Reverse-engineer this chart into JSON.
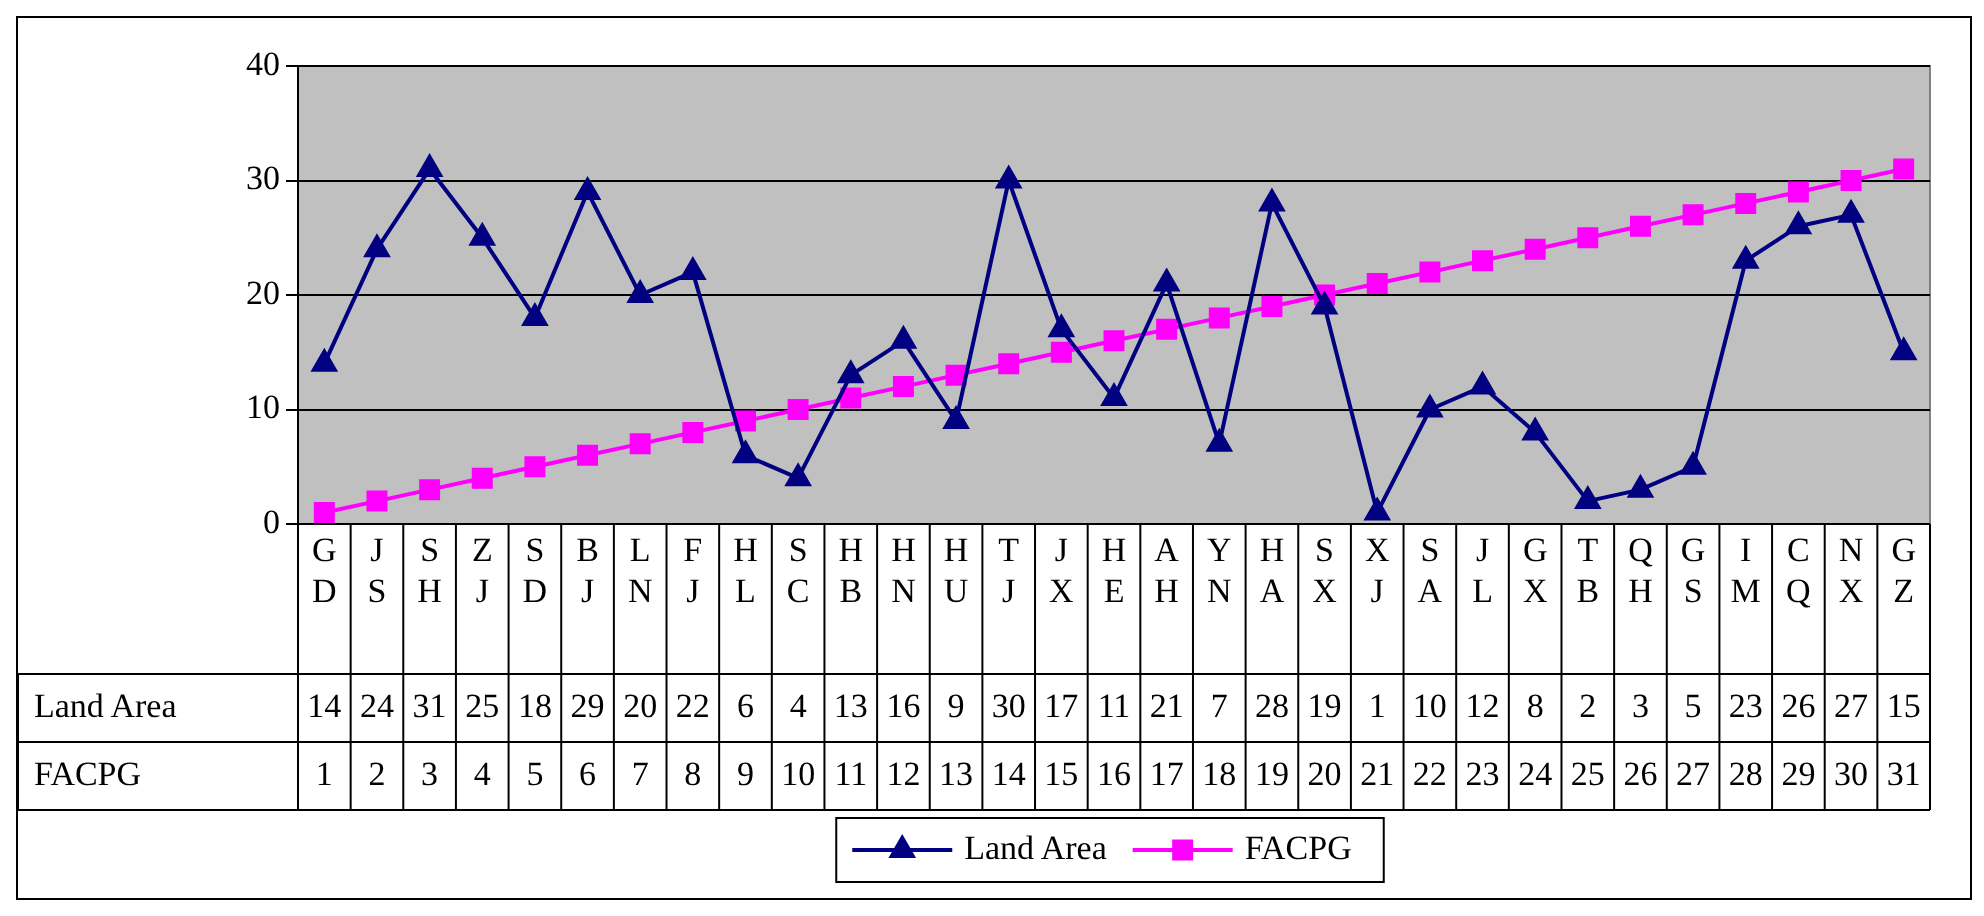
{
  "chart_data": {
    "type": "line",
    "categories": [
      "GD",
      "JS",
      "SH",
      "ZJ",
      "SD",
      "BJ",
      "LN",
      "FJ",
      "HL",
      "SC",
      "HB",
      "HN",
      "HU",
      "TJ",
      "JX",
      "HE",
      "AH",
      "YN",
      "HA",
      "SX",
      "XJ",
      "SA",
      "JL",
      "GX",
      "TB",
      "QH",
      "GS",
      "IM",
      "CQ",
      "NX",
      "GZ"
    ],
    "series": [
      {
        "name": "Land Area",
        "color": "#000080",
        "marker": "triangle",
        "values": [
          14,
          24,
          31,
          25,
          18,
          29,
          20,
          22,
          6,
          4,
          13,
          16,
          9,
          30,
          17,
          11,
          21,
          7,
          28,
          19,
          1,
          10,
          12,
          8,
          2,
          3,
          5,
          23,
          26,
          27,
          15
        ]
      },
      {
        "name": "FACPG",
        "color": "#ff00ff",
        "marker": "square",
        "values": [
          1,
          2,
          3,
          4,
          5,
          6,
          7,
          8,
          9,
          10,
          11,
          12,
          13,
          14,
          15,
          16,
          17,
          18,
          19,
          20,
          21,
          22,
          23,
          24,
          25,
          26,
          27,
          28,
          29,
          30,
          31
        ]
      }
    ],
    "ylim": [
      0,
      40
    ],
    "yticks": [
      0,
      10,
      20,
      30,
      40
    ],
    "grid": "y",
    "legend": "bottom",
    "data_labels": true,
    "line_style": "solid"
  }
}
